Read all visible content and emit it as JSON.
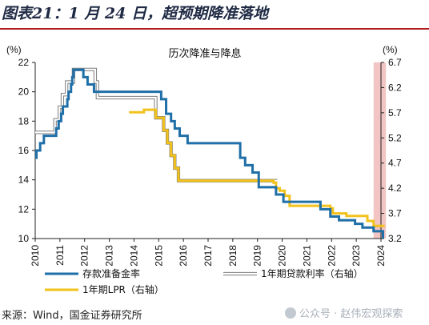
{
  "heading": "图表21：1 月 24 日，超预期降准落地",
  "footer": {
    "source": "来源：Wind，国金证券研究所",
    "watermark": "公众号 · 赵伟宏观探索"
  },
  "colors": {
    "rrr": "#1f6fa8",
    "loan_rate": "#c4c4c4",
    "lpr": "#f2c21a",
    "highlight": "#f2c4c4",
    "title_rule": "#b01c1c"
  },
  "chart_data": {
    "type": "line",
    "title": "历次降准与降息",
    "left_axis": {
      "unit": "(%)",
      "ylim": [
        10,
        22
      ],
      "ticks": [
        10,
        12,
        14,
        16,
        18,
        20,
        22
      ]
    },
    "right_axis": {
      "unit": "(%)",
      "ylim": [
        3.2,
        6.7
      ],
      "ticks": [
        3.2,
        3.7,
        4.2,
        4.7,
        5.2,
        5.7,
        6.2,
        6.7
      ]
    },
    "x_axis": {
      "range": [
        2010,
        2024
      ],
      "ticks": [
        "2010",
        "2011",
        "2012",
        "2013",
        "2014",
        "2015",
        "2016",
        "2017",
        "2018",
        "2019",
        "2020",
        "2021",
        "2022",
        "2023",
        "2024"
      ]
    },
    "highlight_band": {
      "x_from": 2023.7,
      "x_to": 2024.2
    },
    "grid": false,
    "legend_position": "bottom",
    "series": [
      {
        "name": "存款准备金率",
        "axis": "left",
        "color": "#1f6fa8",
        "step": true,
        "points": [
          [
            2010.0,
            15.5
          ],
          [
            2010.05,
            16.0
          ],
          [
            2010.2,
            16.5
          ],
          [
            2010.35,
            17.0
          ],
          [
            2010.85,
            17.5
          ],
          [
            2010.95,
            18.0
          ],
          [
            2011.05,
            18.5
          ],
          [
            2011.12,
            19.0
          ],
          [
            2011.3,
            19.5
          ],
          [
            2011.35,
            20.0
          ],
          [
            2011.45,
            20.5
          ],
          [
            2011.5,
            21.0
          ],
          [
            2011.55,
            21.5
          ],
          [
            2011.95,
            21.0
          ],
          [
            2012.12,
            20.5
          ],
          [
            2012.38,
            20.0
          ],
          [
            2015.1,
            19.5
          ],
          [
            2015.3,
            18.5
          ],
          [
            2015.5,
            18.0
          ],
          [
            2015.65,
            17.5
          ],
          [
            2015.85,
            17.0
          ],
          [
            2016.17,
            16.5
          ],
          [
            2018.3,
            15.5
          ],
          [
            2018.3,
            15.5
          ],
          [
            2018.5,
            15.0
          ],
          [
            2018.8,
            14.5
          ],
          [
            2019.05,
            13.5
          ],
          [
            2019.75,
            13.0
          ],
          [
            2020.05,
            12.5
          ],
          [
            2021.55,
            12.0
          ],
          [
            2021.95,
            11.5
          ],
          [
            2022.3,
            11.25
          ],
          [
            2022.95,
            11.0
          ],
          [
            2023.25,
            10.75
          ],
          [
            2023.7,
            10.5
          ],
          [
            2024.08,
            10.0
          ]
        ]
      },
      {
        "name": "1年期贷款利率（右轴）",
        "axis": "right",
        "color": "#c4c4c4",
        "step": true,
        "points": [
          [
            2010.0,
            5.31
          ],
          [
            2010.8,
            5.56
          ],
          [
            2010.98,
            5.81
          ],
          [
            2011.1,
            6.06
          ],
          [
            2011.27,
            6.31
          ],
          [
            2011.55,
            6.56
          ],
          [
            2012.43,
            6.31
          ],
          [
            2012.52,
            6.0
          ],
          [
            2014.88,
            5.6
          ],
          [
            2015.2,
            5.35
          ],
          [
            2015.35,
            5.1
          ],
          [
            2015.5,
            4.85
          ],
          [
            2015.65,
            4.6
          ],
          [
            2015.8,
            4.35
          ],
          [
            2019.8,
            4.35
          ]
        ]
      },
      {
        "name": "1年期LPR（右轴）",
        "axis": "right",
        "color": "#f2c21a",
        "step": true,
        "points": [
          [
            2013.8,
            5.71
          ],
          [
            2014.4,
            5.76
          ],
          [
            2014.88,
            5.6
          ],
          [
            2015.2,
            5.35
          ],
          [
            2015.35,
            5.1
          ],
          [
            2015.5,
            4.85
          ],
          [
            2015.65,
            4.6
          ],
          [
            2015.8,
            4.35
          ],
          [
            2019.65,
            4.31
          ],
          [
            2019.75,
            4.2
          ],
          [
            2019.9,
            4.15
          ],
          [
            2020.1,
            4.05
          ],
          [
            2020.3,
            3.85
          ],
          [
            2021.95,
            3.8
          ],
          [
            2022.05,
            3.7
          ],
          [
            2022.6,
            3.65
          ],
          [
            2023.45,
            3.55
          ],
          [
            2023.7,
            3.45
          ],
          [
            2024.15,
            3.45
          ]
        ]
      }
    ]
  }
}
